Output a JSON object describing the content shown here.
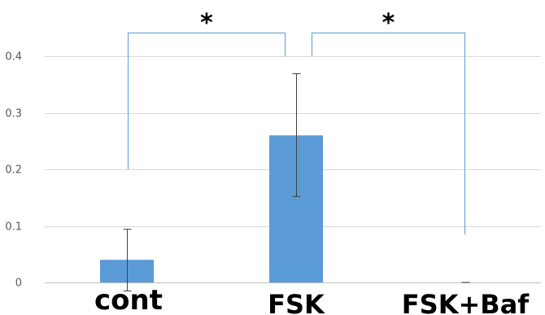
{
  "chart_data": {
    "type": "bar",
    "title": "",
    "xlabel": "",
    "ylabel": "",
    "categories": [
      "cont",
      "FSK",
      "FSK+Baf"
    ],
    "values": [
      0.04,
      0.26,
      0.0
    ],
    "error_upper": [
      0.094,
      0.369,
      0.0
    ],
    "error_lower": [
      -0.015,
      0.152,
      0.0
    ],
    "y_ticks": [
      {
        "value": 0,
        "label": "0"
      },
      {
        "value": 0.1,
        "label": "0.1"
      },
      {
        "value": 0.2,
        "label": "0.2"
      },
      {
        "value": 0.3,
        "label": "0.3"
      },
      {
        "value": 0.4,
        "label": "0.4"
      }
    ],
    "ylim": [
      0,
      0.4
    ],
    "grid": true,
    "legend": "none",
    "significance": [
      {
        "from": "cont",
        "to": "FSK",
        "label": "*",
        "left_start": 0.2,
        "right_start": 0.4
      },
      {
        "from": "FSK",
        "to": "FSK+Baf",
        "label": "*",
        "left_start": 0.4,
        "right_start": 0.085
      }
    ],
    "colors": {
      "bar": "#5b9bd5",
      "bracket": "#5b9bd5",
      "grid": "#d9d9d9",
      "errorbar": "#404040",
      "axis": "#bfbfbf"
    }
  }
}
